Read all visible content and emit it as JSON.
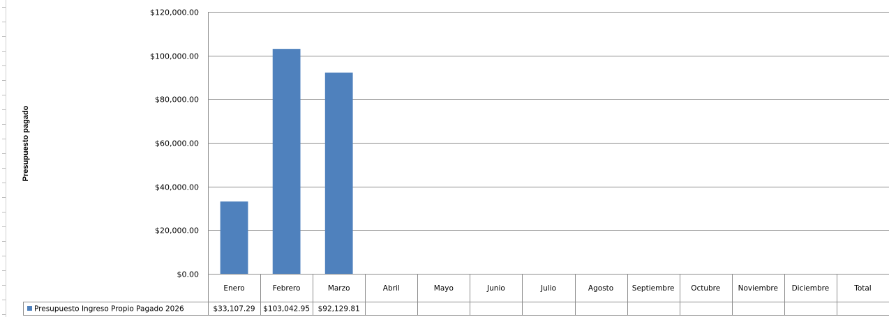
{
  "chart_data": {
    "type": "bar",
    "title": "",
    "xlabel": "",
    "ylabel": "Presupuesto pagado",
    "ylim": [
      0,
      120000
    ],
    "yticks": [
      "$0.00",
      "$20,000.00",
      "$40,000.00",
      "$60,000.00",
      "$80,000.00",
      "$100,000.00",
      "$120,000.00"
    ],
    "categories": [
      "Enero",
      "Febrero",
      "Marzo",
      "Abril",
      "Mayo",
      "Junio",
      "Julio",
      "Agosto",
      "Septiembre",
      "Octubre",
      "Noviembre",
      "Diciembre",
      "Total"
    ],
    "series": [
      {
        "name": "Presupuesto Ingreso Propio Pagado 2026",
        "values": [
          33107.29,
          103042.95,
          92129.81,
          null,
          null,
          null,
          null,
          null,
          null,
          null,
          null,
          null,
          null
        ],
        "value_labels": [
          "$33,107.29",
          "$103,042.95",
          "$92,129.81",
          "",
          "",
          "",
          "",
          "",
          "",
          "",
          "",
          "",
          ""
        ],
        "color": "#4F81BD"
      }
    ],
    "grid": true,
    "legend": "data-table"
  }
}
